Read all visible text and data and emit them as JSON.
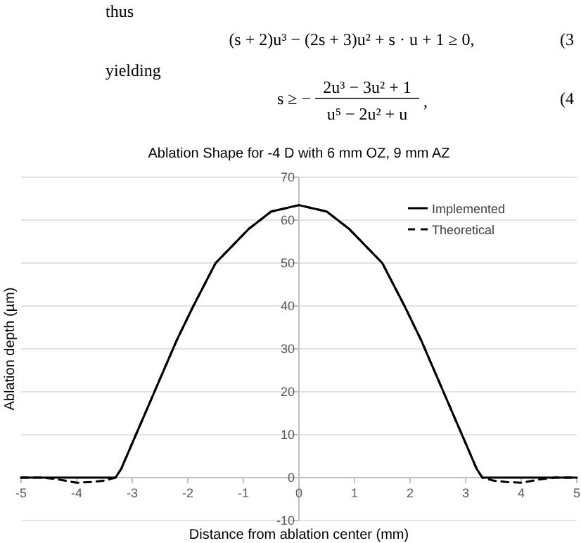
{
  "chart_data": {
    "type": "line",
    "title": "Ablation Shape for -4 D with 6 mm OZ, 9 mm AZ",
    "xlabel": "Distance from ablation center (mm)",
    "ylabel": "Ablation depth (µm)",
    "annotations": [
      "thus",
      "(s + 2)u³ − (2s + 3)u² + s · u + 1 ≥ 0,",
      "(3",
      "yielding",
      "s ≥ −",
      "2u³ − 3u² + 1",
      "u⁵ − 2u² + u",
      ",",
      "(4"
    ],
    "xlim": [
      -5,
      5
    ],
    "ylim": [
      -10,
      70
    ],
    "xticks": [
      -5,
      -4,
      -3,
      -2,
      -1,
      0,
      1,
      2,
      3,
      4,
      5
    ],
    "yticks": [
      -10,
      0,
      10,
      20,
      30,
      40,
      50,
      60,
      70
    ],
    "grid": "y",
    "legend": "top right",
    "series": [
      {
        "name": "Implemented",
        "color": "#000000",
        "line_style": "solid",
        "x": [
          -5,
          -4,
          -3.5,
          -3.3,
          -3.2,
          -3.1,
          -3,
          -2.8,
          -2.6,
          -2.4,
          -2.2,
          -1.9,
          -1.5,
          -1.2,
          -0.9,
          -0.5,
          0,
          0.5,
          0.9,
          1.2,
          1.5,
          1.9,
          2.2,
          2.4,
          2.6,
          2.8,
          3,
          3.1,
          3.2,
          3.3,
          3.5,
          4,
          5
        ],
        "values": [
          0,
          0,
          0,
          0,
          2,
          5,
          8,
          14,
          20,
          26,
          32,
          40,
          50,
          54,
          58,
          62,
          63.5,
          62,
          58,
          54,
          50,
          40,
          32,
          26,
          20,
          14,
          8,
          5,
          2,
          0,
          0,
          0,
          0
        ]
      },
      {
        "name": "Theoretical",
        "color": "#000000",
        "line_style": "dashed",
        "x": [
          -5,
          -4.6,
          -4.3,
          -4,
          -3.7,
          -3.5,
          -3.3,
          -3.2,
          -3.1,
          -3,
          -2.8,
          -2.6,
          -2.4,
          -2.2,
          -1.9,
          -1.5,
          -1.2,
          -0.9,
          -0.5,
          0,
          0.5,
          0.9,
          1.2,
          1.5,
          1.9,
          2.2,
          2.4,
          2.6,
          2.8,
          3,
          3.1,
          3.2,
          3.3,
          3.5,
          3.7,
          4,
          4.3,
          4.6,
          5
        ],
        "values": [
          0,
          0,
          -0.5,
          -1.2,
          -1,
          -0.7,
          0,
          2,
          5,
          8,
          14,
          20,
          26,
          32,
          40,
          50,
          54,
          58,
          62,
          63.5,
          62,
          58,
          54,
          50,
          40,
          32,
          26,
          20,
          14,
          8,
          5,
          2,
          0,
          -0.7,
          -1,
          -1.2,
          -0.5,
          0,
          0
        ]
      }
    ]
  }
}
